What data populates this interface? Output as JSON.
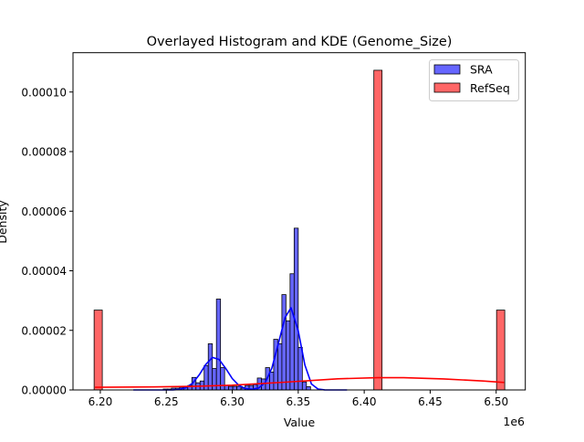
{
  "chart_data": {
    "type": "bar",
    "title": "Overlayed Histogram and KDE (Genome_Size)",
    "xlabel": "Value",
    "ylabel": "Density",
    "x_offset_label": "1e6",
    "xlim": [
      6.1793,
      6.5221
    ],
    "ylim": [
      0,
      0.0001132
    ],
    "x_scale_factor": 1000000,
    "grid": false,
    "legend_position": "top-right",
    "x_ticks": [
      6.2,
      6.25,
      6.3,
      6.35,
      6.4,
      6.45,
      6.5
    ],
    "x_tick_labels": [
      "6.20",
      "6.25",
      "6.30",
      "6.35",
      "6.40",
      "6.45",
      "6.50"
    ],
    "y_ticks": [
      0,
      2e-05,
      4e-05,
      6e-05,
      8e-05,
      0.0001
    ],
    "y_tick_labels": [
      "0.00000",
      "0.00002",
      "0.00004",
      "0.00006",
      "0.00008",
      "0.00010"
    ],
    "series": [
      {
        "name": "SRA",
        "color": "#0000ff",
        "fill": "#6666ff",
        "hist": {
          "bin_start": 6.2477,
          "bin_width": 0.0031,
          "densities": [
            3e-07,
            3e-07,
            6e-07,
            6e-07,
            9e-07,
            1.2e-06,
            1.5e-06,
            4.2e-06,
            2.4e-06,
            3e-06,
            8.2e-06,
            1.55e-05,
            7.2e-06,
            3.05e-05,
            7.5e-06,
            1.5e-06,
            1.2e-06,
            1.2e-06,
            1.2e-06,
            6e-07,
            1.5e-06,
            1.5e-06,
            1.8e-06,
            4e-06,
            3.7e-06,
            7.5e-06,
            6e-06,
            1.7e-05,
            1.55e-05,
            3.2e-05,
            2.32e-05,
            3.9e-05,
            5.43e-05,
            1.43e-05,
            2.7e-06,
            1.1e-06
          ]
        },
        "kde": {
          "x": [
            6.225,
            6.235,
            6.245,
            6.255,
            6.26,
            6.265,
            6.27,
            6.275,
            6.28,
            6.285,
            6.29,
            6.295,
            6.3,
            6.305,
            6.31,
            6.315,
            6.32,
            6.325,
            6.33,
            6.335,
            6.34,
            6.3445,
            6.35,
            6.355,
            6.36,
            6.365,
            6.37,
            6.375,
            6.387
          ],
          "y": [
            0,
            0,
            6e-10,
            3.5e-08,
            1.9e-07,
            7.6e-07,
            2.29e-06,
            5.1e-06,
            8.6e-06,
            1.09e-05,
            1.025e-05,
            7.25e-06,
            3.84e-06,
            1.52e-06,
            4.7e-07,
            2.1e-07,
            6.4e-07,
            2.5e-06,
            7.3e-06,
            1.56e-05,
            2.43e-05,
            2.76e-05,
            1.99e-05,
            8.4e-06,
            2e-06,
            3e-07,
            2.5e-08,
            0,
            0
          ]
        }
      },
      {
        "name": "RefSeq",
        "color": "#ff0000",
        "fill": "#ff6666",
        "hist": {
          "bars": [
            {
              "start": 6.1953,
              "width": 0.0062,
              "density": 2.68e-05
            },
            {
              "start": 6.4073,
              "width": 0.0062,
              "density": 0.0001073
            },
            {
              "start": 6.5003,
              "width": 0.0062,
              "density": 2.68e-05
            }
          ]
        },
        "kde": {
          "x": [
            6.196,
            6.24,
            6.27,
            6.3,
            6.34,
            6.38,
            6.41,
            6.43,
            6.46,
            6.49,
            6.506
          ],
          "y": [
            9e-07,
            1e-06,
            1.2e-06,
            1.6e-06,
            2.6e-06,
            3.75e-06,
            4.1e-06,
            4.1e-06,
            3.7e-06,
            3e-06,
            2.5e-06
          ]
        }
      }
    ]
  }
}
